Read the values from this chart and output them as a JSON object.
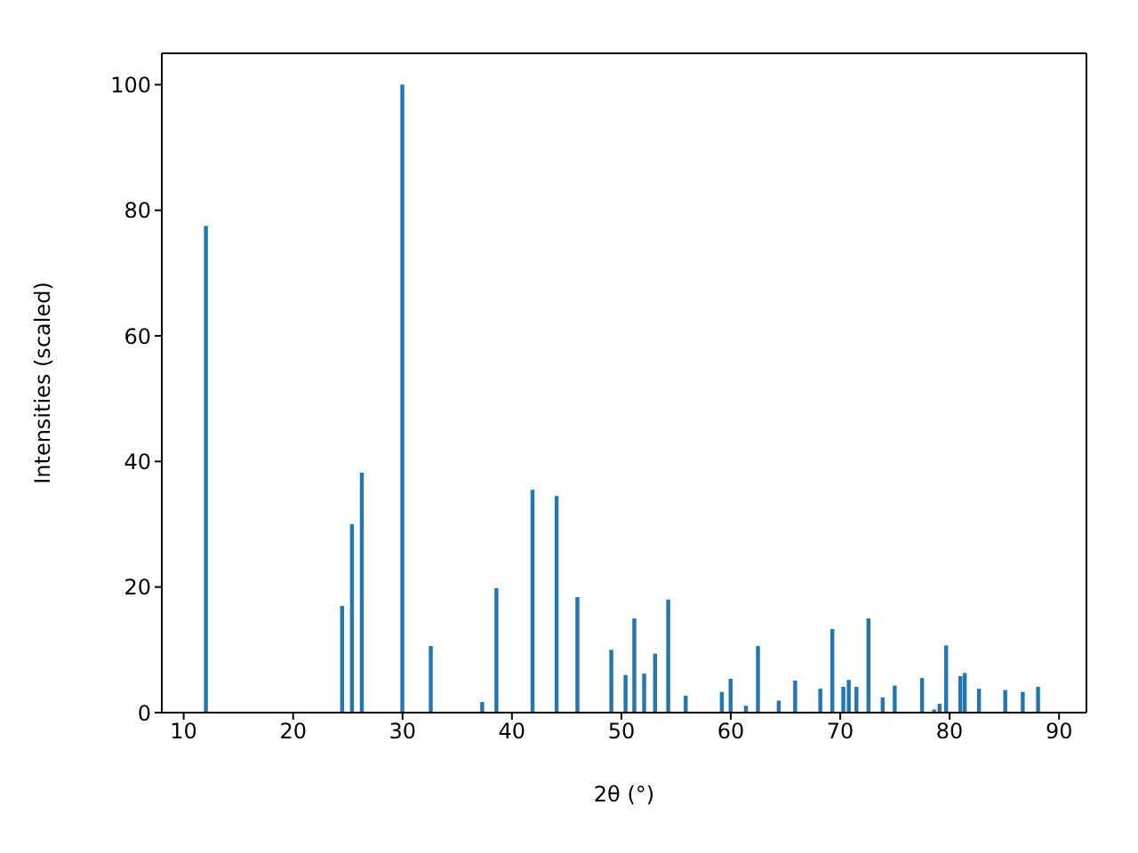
{
  "chart_data": {
    "type": "bar",
    "xlabel": "2θ (°)",
    "ylabel": "Intensities (scaled)",
    "x": [
      12.05,
      24.5,
      25.4,
      26.3,
      30.0,
      32.6,
      37.3,
      38.6,
      41.9,
      44.1,
      46.0,
      49.1,
      50.4,
      51.2,
      52.1,
      53.1,
      54.3,
      55.9,
      59.2,
      60.0,
      61.4,
      62.5,
      64.4,
      65.9,
      68.2,
      69.3,
      70.3,
      70.8,
      71.5,
      72.6,
      73.9,
      75.0,
      77.5,
      78.6,
      79.1,
      79.7,
      81.0,
      81.4,
      82.7,
      85.1,
      86.7,
      88.1
    ],
    "values": [
      77.5,
      17,
      30,
      38.2,
      100,
      10.6,
      1.7,
      19.8,
      35.5,
      34.5,
      18.4,
      10,
      6,
      15,
      6.2,
      9.4,
      18,
      2.7,
      3.3,
      5.4,
      1.1,
      10.6,
      1.9,
      5.1,
      3.8,
      13.3,
      4.1,
      5.2,
      4.1,
      15,
      2.4,
      4.3,
      5.5,
      0.5,
      1.4,
      10.7,
      5.8,
      6.3,
      3.8,
      3.6,
      3.3,
      4.1
    ],
    "color": "#1f77b4",
    "xlim": [
      8,
      92.5
    ],
    "xticks": [
      10,
      20,
      30,
      40,
      50,
      60,
      70,
      80,
      90
    ],
    "ylim": [
      0,
      105
    ],
    "yticks": [
      0,
      20,
      40,
      60,
      80,
      100
    ]
  }
}
